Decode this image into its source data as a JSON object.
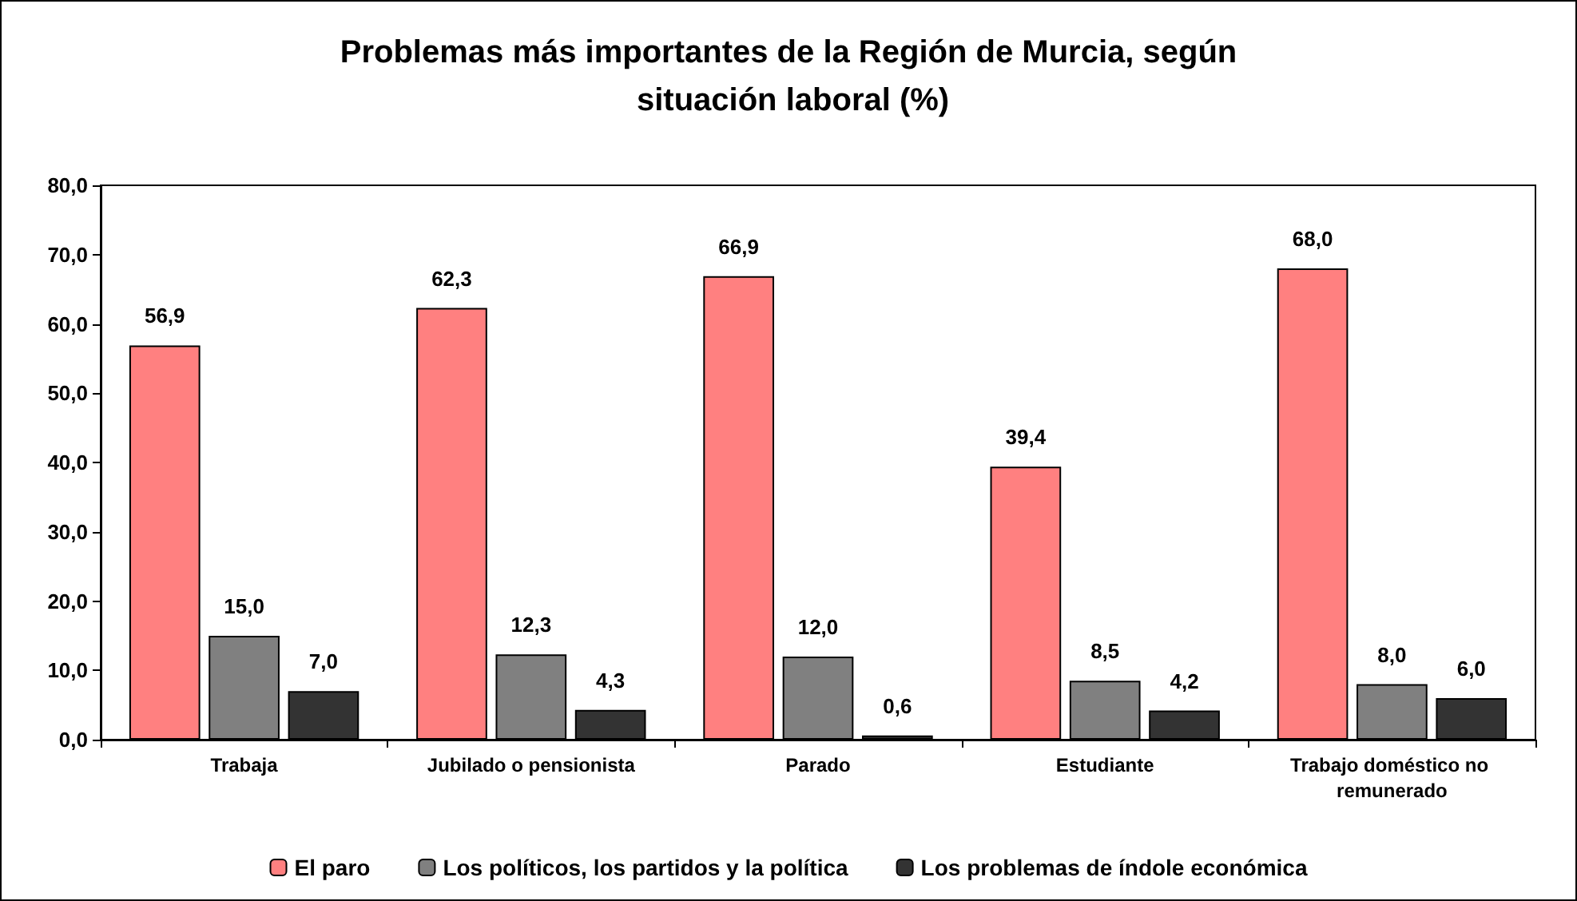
{
  "chart_data": {
    "type": "bar",
    "title": "Problemas más importantes de la Región de Murcia, según situación laboral (%)",
    "categories": [
      "Trabaja",
      "Jubilado o pensionista",
      "Parado",
      "Estudiante",
      "Trabajo doméstico no remunerado"
    ],
    "series": [
      {
        "name": "El paro",
        "color": "#ff8080",
        "values": [
          56.9,
          62.3,
          66.9,
          39.4,
          68.0
        ],
        "value_labels": [
          "56,9",
          "62,3",
          "66,9",
          "39,4",
          "68,0"
        ]
      },
      {
        "name": "Los políticos, los partidos y la política",
        "color": "#808080",
        "values": [
          15.0,
          12.3,
          12.0,
          8.5,
          8.0
        ],
        "value_labels": [
          "15,0",
          "12,3",
          "12,0",
          "8,5",
          "8,0"
        ]
      },
      {
        "name": "Los problemas de índole económica",
        "color": "#333333",
        "values": [
          7.0,
          4.3,
          0.6,
          4.2,
          6.0
        ],
        "value_labels": [
          "7,0",
          "4,3",
          "0,6",
          "4,2",
          "6,0"
        ]
      }
    ],
    "ylim": [
      0,
      80
    ],
    "yticks": [
      {
        "value": 0,
        "label": "0,0"
      },
      {
        "value": 10,
        "label": "10,0"
      },
      {
        "value": 20,
        "label": "20,0"
      },
      {
        "value": 30,
        "label": "30,0"
      },
      {
        "value": 40,
        "label": "40,0"
      },
      {
        "value": 50,
        "label": "50,0"
      },
      {
        "value": 60,
        "label": "60,0"
      },
      {
        "value": 70,
        "label": "70,0"
      },
      {
        "value": 80,
        "label": "80,0"
      }
    ],
    "grid": false,
    "legend": "bottom"
  }
}
